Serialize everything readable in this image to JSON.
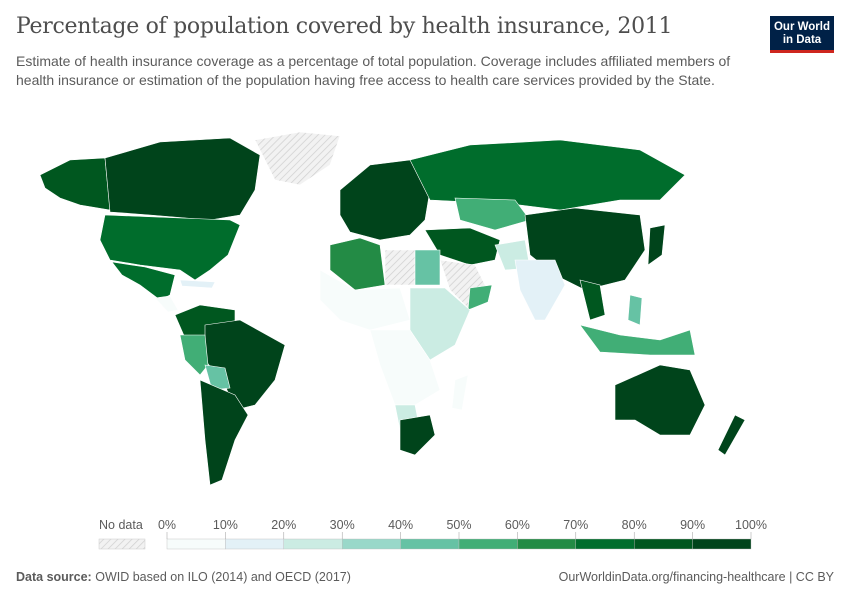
{
  "title": "Percentage of population covered by health insurance, 2011",
  "subtitle": "Estimate of health insurance coverage as a percentage of total population. Coverage includes affiliated members of health insurance or estimation of the population having free access to health care services provided by the State.",
  "logo": {
    "line1": "Our World",
    "line2": "in Data"
  },
  "legend": {
    "no_data_label": "No data",
    "ticks": [
      "0%",
      "10%",
      "20%",
      "30%",
      "40%",
      "50%",
      "60%",
      "70%",
      "80%",
      "90%",
      "100%"
    ],
    "bin_colors": [
      "#f7fcfb",
      "#e3f1f7",
      "#cbece3",
      "#99d8c9",
      "#66c2a4",
      "#41ae76",
      "#238b45",
      "#006d2c",
      "#00571f",
      "#00441b"
    ],
    "no_data_color": "#e0e0e0"
  },
  "chart_data": {
    "type": "choropleth",
    "year": 2011,
    "unit": "%",
    "scale": [
      0,
      100
    ],
    "bin_width": 10
  },
  "footer": {
    "source_label": "Data source:",
    "source_text": "OWID based on ILO (2014) and OECD (2017)",
    "url": "OurWorldinData.org/financing-healthcare | CC BY"
  }
}
